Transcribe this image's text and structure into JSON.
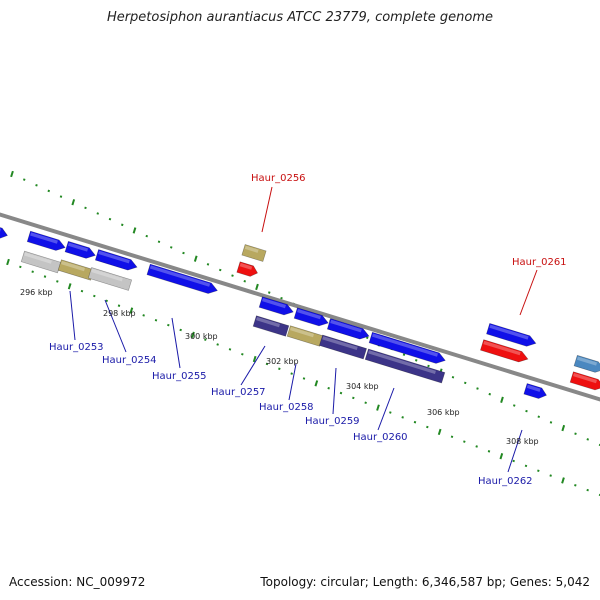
{
  "title": "Herpetosiphon aurantiacus ATCC 23779, complete genome",
  "footer": {
    "accession": "Accession: NC_009972",
    "summary": "Topology: circular; Length: 6,346,587 bp; Genes: 5,042"
  },
  "scale_labels": [
    "296 kbp",
    "298 kbp",
    "300 kbp",
    "302 kbp",
    "304 kbp",
    "306 kbp",
    "308 kbp"
  ],
  "gene_labels": [
    {
      "text": "Haur_0253",
      "color": "#1a1aa8"
    },
    {
      "text": "Haur_0254",
      "color": "#1a1aa8"
    },
    {
      "text": "Haur_0255",
      "color": "#1a1aa8"
    },
    {
      "text": "Haur_0256",
      "color": "#c81010"
    },
    {
      "text": "Haur_0257",
      "color": "#1a1aa8"
    },
    {
      "text": "Haur_0258",
      "color": "#1a1aa8"
    },
    {
      "text": "Haur_0259",
      "color": "#1a1aa8"
    },
    {
      "text": "Haur_0260",
      "color": "#1a1aa8"
    },
    {
      "text": "Haur_0261",
      "color": "#c81010"
    },
    {
      "text": "Haur_0262",
      "color": "#1a1aa8"
    }
  ],
  "colors": {
    "cds": "#1010e8",
    "rna": "#ee1010",
    "tan": "#b8a860",
    "gray": "#c4c4c4",
    "navy": "#3c3488",
    "steel": "#4a88c0",
    "backbone": "#888888",
    "tick": "#228822"
  }
}
